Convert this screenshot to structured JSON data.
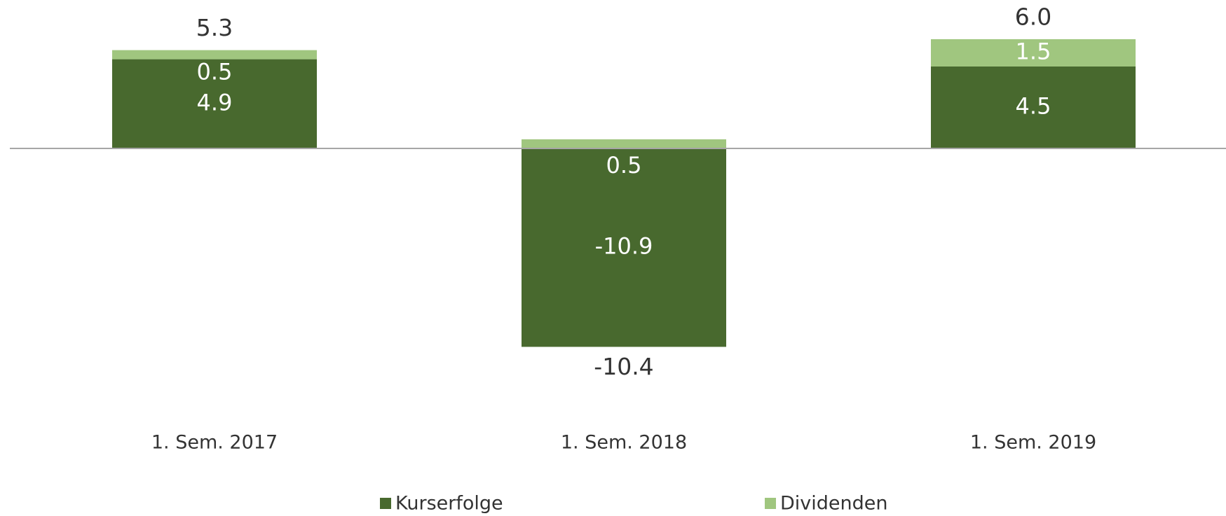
{
  "chart_data": {
    "type": "stacked_bar",
    "categories": [
      "1. Sem. 2017",
      "1. Sem. 2018",
      "1. Sem. 2019"
    ],
    "series": [
      {
        "name": "Kurserfolge",
        "color": "#48692e",
        "values": [
          4.9,
          -10.9,
          4.5
        ]
      },
      {
        "name": "Dividenden",
        "color": "#a0c67f",
        "values": [
          0.5,
          0.5,
          1.5
        ]
      }
    ],
    "totals": {
      "values": [
        5.3,
        -10.4,
        6.0
      ],
      "value_labels": [
        "5.3",
        "-10.4",
        "6.0"
      ]
    },
    "ylim": [
      -14,
      8
    ],
    "legend": "bottom"
  }
}
